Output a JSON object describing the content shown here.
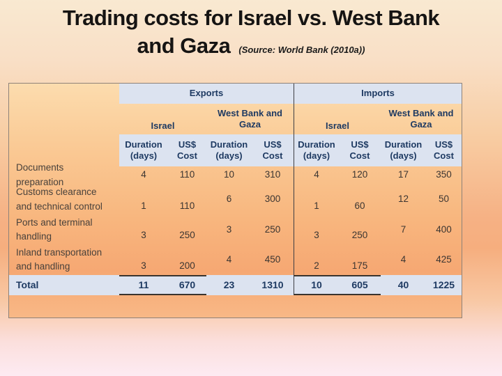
{
  "title": {
    "line1": "Trading costs for Israel vs. West Bank",
    "line2": "and Gaza",
    "source": "(Source: World Bank (2010a))"
  },
  "table": {
    "sections": {
      "exports": "Exports",
      "imports": "Imports"
    },
    "regions": {
      "israel": "Israel",
      "west_bank": "West Bank and Gaza"
    },
    "col_headers": {
      "duration_l1": "Duration",
      "duration_l2": "(days)",
      "cost_l1": "US$",
      "cost_l2": "Cost"
    },
    "rows": [
      {
        "label": "Documents preparation",
        "values": [
          4,
          110,
          10,
          310,
          4,
          120,
          17,
          350
        ]
      },
      {
        "label": "Customs clearance and technical control",
        "values": [
          1,
          110,
          6,
          300,
          1,
          60,
          12,
          50
        ]
      },
      {
        "label": "Ports and terminal handling",
        "values": [
          3,
          250,
          3,
          250,
          3,
          250,
          7,
          400
        ]
      },
      {
        "label": "Inland transportation and handling",
        "values": [
          3,
          200,
          4,
          450,
          2,
          175,
          4,
          425
        ]
      }
    ],
    "total": {
      "label": "Total",
      "values": [
        11,
        670,
        23,
        1310,
        10,
        605,
        40,
        1225
      ]
    }
  },
  "colors": {
    "band_blue": "#dce3f0",
    "header_navy": "#1e3a62",
    "table_border": "#8e8279",
    "divider": "#3e3e44",
    "body_text": "#3b3531"
  }
}
